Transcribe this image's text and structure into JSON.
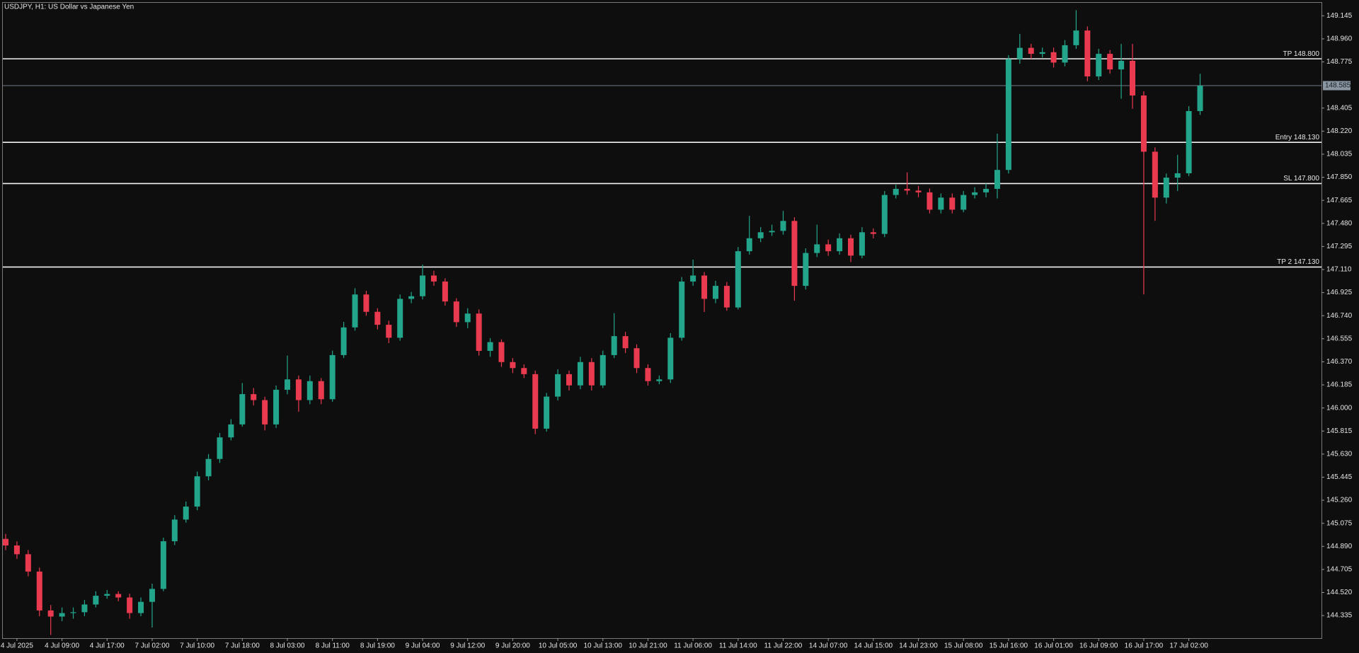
{
  "chart_data": {
    "type": "candlestick",
    "title": "USDJPY, H1:  US Dollar vs Japanese Yen",
    "up_color": "#22a58b",
    "down_color": "#ea3a4f",
    "categories": [
      null,
      "4 Jul 2025",
      null,
      null,
      null,
      "4 Jul 09:00",
      null,
      null,
      null,
      "4 Jul 17:00",
      null,
      null,
      null,
      "7 Jul 02:00",
      null,
      null,
      null,
      "7 Jul 10:00",
      null,
      null,
      null,
      "7 Jul 18:00",
      null,
      null,
      null,
      "8 Jul 03:00",
      null,
      null,
      null,
      "8 Jul 11:00",
      null,
      null,
      null,
      "8 Jul 19:00",
      null,
      null,
      null,
      "9 Jul 04:00",
      null,
      null,
      null,
      "9 Jul 12:00",
      null,
      null,
      null,
      "9 Jul 20:00",
      null,
      null,
      null,
      "10 Jul 05:00",
      null,
      null,
      null,
      "10 Jul 13:00",
      null,
      null,
      null,
      "10 Jul 21:00",
      null,
      null,
      null,
      "11 Jul 06:00",
      null,
      null,
      null,
      "11 Jul 14:00",
      null,
      null,
      null,
      "11 Jul 22:00",
      null,
      null,
      null,
      "14 Jul 07:00",
      null,
      null,
      null,
      "14 Jul 15:00",
      null,
      null,
      null,
      "14 Jul 23:00",
      null,
      null,
      null,
      "15 Jul 08:00",
      null,
      null,
      null,
      "15 Jul 16:00",
      null,
      null,
      null,
      "16 Jul 01:00",
      null,
      null,
      null,
      "16 Jul 09:00",
      null,
      null,
      null,
      "16 Jul 17:00",
      null,
      null,
      null,
      "17 Jul 02:00",
      null
    ],
    "open": [
      144.95,
      144.897,
      144.827,
      144.688,
      144.376,
      144.327,
      144.355,
      144.362,
      144.424,
      144.494,
      144.508,
      144.48,
      144.355,
      144.445,
      144.549,
      144.931,
      145.105,
      145.209,
      145.452,
      145.591,
      145.764,
      145.868,
      146.111,
      146.063,
      145.868,
      146.146,
      146.229,
      146.063,
      146.215,
      146.07,
      146.424,
      146.646,
      146.91,
      146.771,
      146.667,
      146.563,
      146.875,
      146.896,
      147.062,
      147.014,
      146.854,
      146.688,
      146.757,
      146.458,
      146.528,
      146.368,
      146.32,
      146.271,
      145.834,
      146.091,
      146.271,
      146.181,
      146.368,
      146.181,
      146.424,
      146.576,
      146.479,
      146.32,
      146.215,
      146.229,
      146.563,
      147.014,
      147.062,
      146.875,
      146.979,
      146.806,
      147.257,
      147.361,
      147.409,
      147.42,
      147.5,
      146.979,
      147.243,
      147.312,
      147.257,
      147.361,
      147.222,
      147.409,
      147.396,
      147.708,
      147.757,
      147.743,
      147.729,
      147.59,
      147.687,
      147.59,
      147.708,
      147.729,
      147.757,
      147.909,
      148.798,
      148.888,
      148.84,
      148.853,
      148.77,
      148.909,
      149.027,
      148.659,
      148.84,
      148.715,
      148.784,
      148.506,
      148.055,
      147.687,
      147.847,
      147.882,
      148.381
    ],
    "high": [
      144.99,
      144.93,
      144.86,
      144.72,
      144.42,
      144.4,
      144.4,
      144.46,
      144.53,
      144.54,
      144.53,
      144.51,
      144.48,
      144.59,
      144.96,
      145.14,
      145.25,
      145.49,
      145.63,
      145.8,
      145.91,
      146.2,
      146.16,
      146.09,
      146.18,
      146.42,
      146.26,
      146.26,
      146.24,
      146.46,
      146.69,
      146.96,
      146.94,
      146.8,
      146.7,
      146.91,
      146.93,
      147.15,
      147.1,
      147.04,
      146.88,
      146.8,
      146.79,
      146.56,
      146.55,
      146.4,
      146.35,
      146.3,
      146.12,
      146.31,
      146.3,
      146.41,
      146.4,
      146.46,
      146.76,
      146.61,
      146.51,
      146.35,
      146.26,
      146.6,
      147.05,
      147.19,
      147.09,
      147.02,
      147.01,
      147.29,
      147.54,
      147.45,
      147.47,
      147.58,
      147.53,
      147.28,
      147.47,
      147.35,
      147.4,
      147.39,
      147.45,
      147.44,
      147.74,
      147.79,
      147.89,
      147.78,
      147.76,
      147.72,
      147.72,
      147.74,
      147.77,
      147.8,
      148.2,
      148.83,
      149.0,
      148.92,
      148.89,
      148.89,
      148.95,
      149.19,
      149.06,
      148.88,
      148.87,
      148.92,
      148.92,
      148.54,
      148.09,
      147.88,
      148.03,
      148.42,
      148.68
    ],
    "low": [
      144.86,
      144.79,
      144.65,
      144.33,
      144.18,
      144.29,
      144.31,
      144.33,
      144.4,
      144.47,
      144.45,
      144.31,
      144.33,
      144.24,
      144.53,
      144.9,
      145.08,
      145.18,
      145.42,
      145.56,
      145.74,
      145.85,
      146.02,
      145.82,
      145.84,
      146.11,
      145.97,
      146.03,
      146.03,
      146.05,
      146.4,
      146.62,
      146.74,
      146.63,
      146.52,
      146.54,
      146.84,
      146.87,
      146.98,
      146.82,
      146.65,
      146.64,
      146.42,
      146.41,
      146.33,
      146.28,
      146.24,
      145.79,
      145.81,
      146.06,
      146.14,
      146.15,
      146.14,
      146.16,
      146.4,
      146.44,
      146.28,
      146.18,
      146.19,
      146.2,
      146.54,
      146.98,
      146.77,
      146.84,
      146.78,
      146.79,
      147.23,
      147.33,
      147.38,
      147.39,
      146.86,
      146.95,
      147.21,
      147.22,
      147.23,
      147.17,
      147.2,
      147.36,
      147.37,
      147.68,
      147.71,
      147.69,
      147.56,
      147.56,
      147.56,
      147.57,
      147.68,
      147.69,
      147.68,
      147.88,
      148.76,
      148.8,
      148.81,
      148.73,
      148.74,
      148.88,
      148.62,
      148.63,
      148.68,
      148.48,
      148.4,
      146.91,
      147.5,
      147.64,
      147.74,
      147.86,
      148.35
    ],
    "close": [
      144.897,
      144.827,
      144.688,
      144.376,
      144.327,
      144.355,
      144.362,
      144.424,
      144.494,
      144.508,
      144.48,
      144.355,
      144.445,
      144.549,
      144.931,
      145.105,
      145.209,
      145.452,
      145.591,
      145.764,
      145.868,
      146.111,
      146.063,
      145.868,
      146.146,
      146.229,
      146.063,
      146.215,
      146.07,
      146.424,
      146.646,
      146.91,
      146.771,
      146.667,
      146.563,
      146.875,
      146.896,
      147.062,
      147.014,
      146.854,
      146.688,
      146.757,
      146.458,
      146.528,
      146.368,
      146.32,
      146.271,
      145.834,
      146.091,
      146.271,
      146.181,
      146.368,
      146.181,
      146.424,
      146.576,
      146.479,
      146.32,
      146.215,
      146.229,
      146.563,
      147.014,
      147.062,
      146.875,
      146.979,
      146.806,
      147.257,
      147.361,
      147.409,
      147.42,
      147.5,
      146.979,
      147.243,
      147.312,
      147.257,
      147.361,
      147.222,
      147.409,
      147.396,
      147.708,
      147.757,
      147.743,
      147.729,
      147.59,
      147.687,
      147.59,
      147.708,
      147.729,
      147.757,
      147.909,
      148.798,
      148.888,
      148.84,
      148.853,
      148.77,
      148.909,
      149.027,
      148.659,
      148.84,
      148.715,
      148.784,
      148.506,
      148.055,
      147.687,
      147.847,
      147.882,
      148.381,
      148.585
    ],
    "ylim": [
      144.154,
      149.249
    ],
    "yticks": [
      149.145,
      {
        "value": 148.96,
        "label": "148.960"
      },
      148.775,
      148.405,
      {
        "value": 148.22,
        "label": "148.220"
      },
      148.035,
      {
        "value": 147.85,
        "label": "147.850"
      },
      147.665,
      {
        "value": 147.48,
        "label": "147.480"
      },
      147.295,
      {
        "value": 147.11,
        "label": "147.110"
      },
      146.925,
      {
        "value": 146.74,
        "label": "146.740"
      },
      146.555,
      {
        "value": 146.37,
        "label": "146.370"
      },
      146.185,
      {
        "value": 146.0,
        "label": "146.000"
      },
      145.815,
      {
        "value": 145.63,
        "label": "145.630"
      },
      145.445,
      {
        "value": 145.26,
        "label": "145.260"
      },
      145.075,
      {
        "value": 144.89,
        "label": "144.890"
      },
      144.705,
      {
        "value": 144.52,
        "label": "144.520"
      },
      144.335
    ],
    "levels": [
      {
        "value": 148.8,
        "label": "TP 148.800"
      },
      {
        "value": 148.13,
        "label": "Entry 148.130"
      },
      {
        "value": 147.8,
        "label": "SL 147.800"
      },
      {
        "value": 147.13,
        "label": "TP 2 147.130"
      }
    ],
    "last_price": 148.585
  }
}
